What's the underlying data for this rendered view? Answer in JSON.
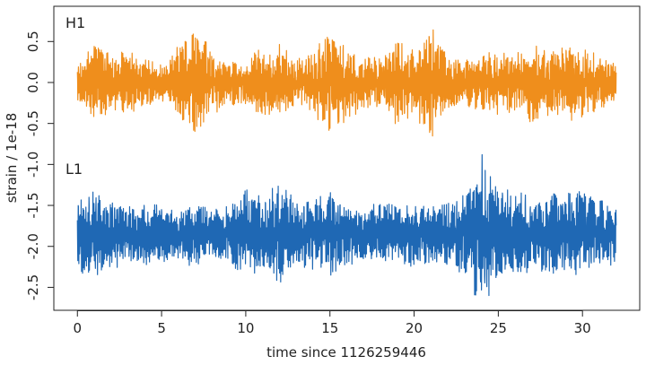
{
  "chart_data": {
    "type": "line",
    "title": "",
    "xlabel": "time since 1126259446",
    "ylabel": "strain / 1e-18",
    "xlim": [
      -1.4,
      33.4
    ],
    "ylim": [
      -2.78,
      0.93
    ],
    "xticks": [
      0,
      5,
      10,
      15,
      20,
      25,
      30
    ],
    "yticks": [
      -2.5,
      -2.0,
      -1.5,
      -1.0,
      -0.5,
      0.0,
      0.5
    ],
    "ytick_labels": [
      "-2.5",
      "-2.0",
      "-1.5",
      "-1.0",
      "-0.5",
      "0.0",
      "0.5"
    ],
    "grid": false,
    "legend": "none",
    "series": [
      {
        "name": "H1",
        "color": "#ef8e1c",
        "x_range": [
          0,
          32
        ],
        "offset": 0.0,
        "amplitude_envelope": [
          [
            0,
            0.25
          ],
          [
            1,
            0.5
          ],
          [
            2,
            0.35
          ],
          [
            3,
            0.4
          ],
          [
            4,
            0.3
          ],
          [
            5,
            0.25
          ],
          [
            6,
            0.45
          ],
          [
            7,
            0.7
          ],
          [
            8,
            0.4
          ],
          [
            9,
            0.3
          ],
          [
            10,
            0.3
          ],
          [
            11,
            0.45
          ],
          [
            12,
            0.5
          ],
          [
            13,
            0.3
          ],
          [
            14,
            0.4
          ],
          [
            15,
            0.65
          ],
          [
            16,
            0.5
          ],
          [
            17,
            0.3
          ],
          [
            18,
            0.35
          ],
          [
            19,
            0.55
          ],
          [
            20,
            0.4
          ],
          [
            21,
            0.75
          ],
          [
            22,
            0.35
          ],
          [
            23,
            0.3
          ],
          [
            24,
            0.35
          ],
          [
            25,
            0.4
          ],
          [
            26,
            0.35
          ],
          [
            27,
            0.5
          ],
          [
            28,
            0.4
          ],
          [
            29,
            0.5
          ],
          [
            30,
            0.45
          ],
          [
            31,
            0.35
          ],
          [
            32,
            0.25
          ]
        ]
      },
      {
        "name": "L1",
        "color": "#1f68b4",
        "x_range": [
          0,
          32
        ],
        "offset": -1.85,
        "amplitude_envelope": [
          [
            0,
            0.5
          ],
          [
            1,
            0.55
          ],
          [
            2,
            0.45
          ],
          [
            3,
            0.35
          ],
          [
            4,
            0.4
          ],
          [
            5,
            0.35
          ],
          [
            6,
            0.35
          ],
          [
            7,
            0.4
          ],
          [
            8,
            0.3
          ],
          [
            9,
            0.35
          ],
          [
            10,
            0.6
          ],
          [
            11,
            0.45
          ],
          [
            12,
            0.65
          ],
          [
            13,
            0.4
          ],
          [
            14,
            0.45
          ],
          [
            15,
            0.55
          ],
          [
            16,
            0.4
          ],
          [
            17,
            0.35
          ],
          [
            18,
            0.4
          ],
          [
            19,
            0.35
          ],
          [
            20,
            0.45
          ],
          [
            21,
            0.35
          ],
          [
            22,
            0.4
          ],
          [
            23,
            0.5
          ],
          [
            24,
            1.0
          ],
          [
            25,
            0.6
          ],
          [
            26,
            0.55
          ],
          [
            27,
            0.45
          ],
          [
            28,
            0.55
          ],
          [
            29,
            0.5
          ],
          [
            30,
            0.55
          ],
          [
            31,
            0.45
          ],
          [
            32,
            0.35
          ]
        ]
      }
    ]
  }
}
